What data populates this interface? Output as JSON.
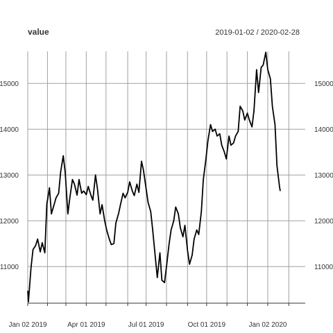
{
  "chart_data": {
    "type": "line",
    "title": "value",
    "subtitle": "2019-01-02 / 2020-02-28",
    "xlabel": "",
    "ylabel": "",
    "ylim": [
      10200,
      15700
    ],
    "y_ticks": [
      11000,
      12000,
      13000,
      14000,
      15000
    ],
    "y_tick_labels": [
      "11000",
      "12000",
      "13000",
      "14000",
      "15000"
    ],
    "x_range": [
      "2019-01-02",
      "2020-02-28"
    ],
    "x_ticks": [
      "2019-01-02",
      "2019-02-01",
      "2019-03-01",
      "2019-04-01",
      "2019-05-01",
      "2019-06-03",
      "2019-07-01",
      "2019-08-01",
      "2019-09-02",
      "2019-10-01",
      "2019-11-01",
      "2019-12-02",
      "2020-01-02",
      "2020-02-03"
    ],
    "x_tick_labels": [
      {
        "date": "2019-01-02",
        "label": "Jan 02 2019"
      },
      {
        "date": "2019-04-01",
        "label": "Apr 01 2019"
      },
      {
        "date": "2019-07-01",
        "label": "Jul 01 2019"
      },
      {
        "date": "2019-10-01",
        "label": "Oct 01 2019"
      },
      {
        "date": "2020-01-02",
        "label": "Jan 02 2020"
      }
    ],
    "grid": true,
    "series": [
      {
        "name": "value",
        "color": "#000000",
        "points": [
          [
            "2019-01-02",
            10470
          ],
          [
            "2019-01-03",
            10230
          ],
          [
            "2019-01-07",
            10980
          ],
          [
            "2019-01-10",
            11370
          ],
          [
            "2019-01-14",
            11460
          ],
          [
            "2019-01-17",
            11600
          ],
          [
            "2019-01-21",
            11320
          ],
          [
            "2019-01-24",
            11520
          ],
          [
            "2019-01-28",
            11300
          ],
          [
            "2019-01-31",
            12360
          ],
          [
            "2019-02-04",
            12720
          ],
          [
            "2019-02-07",
            12150
          ],
          [
            "2019-02-11",
            12350
          ],
          [
            "2019-02-14",
            12500
          ],
          [
            "2019-02-18",
            12600
          ],
          [
            "2019-02-21",
            13060
          ],
          [
            "2019-02-25",
            13420
          ],
          [
            "2019-02-28",
            13050
          ],
          [
            "2019-03-04",
            12150
          ],
          [
            "2019-03-07",
            12500
          ],
          [
            "2019-03-11",
            12900
          ],
          [
            "2019-03-14",
            12800
          ],
          [
            "2019-03-18",
            12560
          ],
          [
            "2019-03-21",
            12900
          ],
          [
            "2019-03-25",
            12600
          ],
          [
            "2019-03-28",
            12650
          ],
          [
            "2019-04-01",
            12570
          ],
          [
            "2019-04-04",
            12750
          ],
          [
            "2019-04-08",
            12560
          ],
          [
            "2019-04-11",
            12450
          ],
          [
            "2019-04-15",
            13000
          ],
          [
            "2019-04-18",
            12700
          ],
          [
            "2019-04-22",
            12150
          ],
          [
            "2019-04-25",
            12350
          ],
          [
            "2019-04-29",
            12000
          ],
          [
            "2019-05-02",
            11800
          ],
          [
            "2019-05-06",
            11600
          ],
          [
            "2019-05-09",
            11480
          ],
          [
            "2019-05-13",
            11500
          ],
          [
            "2019-05-16",
            11950
          ],
          [
            "2019-05-20",
            12150
          ],
          [
            "2019-05-23",
            12350
          ],
          [
            "2019-05-27",
            12600
          ],
          [
            "2019-05-30",
            12500
          ],
          [
            "2019-06-03",
            12620
          ],
          [
            "2019-06-06",
            12850
          ],
          [
            "2019-06-10",
            12650
          ],
          [
            "2019-06-13",
            12550
          ],
          [
            "2019-06-17",
            12800
          ],
          [
            "2019-06-20",
            12620
          ],
          [
            "2019-06-24",
            13300
          ],
          [
            "2019-06-27",
            13100
          ],
          [
            "2019-07-01",
            12700
          ],
          [
            "2019-07-04",
            12400
          ],
          [
            "2019-07-08",
            12200
          ],
          [
            "2019-07-11",
            11800
          ],
          [
            "2019-07-15",
            11200
          ],
          [
            "2019-07-18",
            10760
          ],
          [
            "2019-07-22",
            11300
          ],
          [
            "2019-07-25",
            10700
          ],
          [
            "2019-07-29",
            10650
          ],
          [
            "2019-08-01",
            11000
          ],
          [
            "2019-08-05",
            11500
          ],
          [
            "2019-08-08",
            11800
          ],
          [
            "2019-08-12",
            12000
          ],
          [
            "2019-08-15",
            12300
          ],
          [
            "2019-08-19",
            12150
          ],
          [
            "2019-08-22",
            11850
          ],
          [
            "2019-08-26",
            11650
          ],
          [
            "2019-08-29",
            11900
          ],
          [
            "2019-09-02",
            11350
          ],
          [
            "2019-09-05",
            11050
          ],
          [
            "2019-09-09",
            11250
          ],
          [
            "2019-09-12",
            11600
          ],
          [
            "2019-09-16",
            11800
          ],
          [
            "2019-09-19",
            11700
          ],
          [
            "2019-09-23",
            12200
          ],
          [
            "2019-09-26",
            12900
          ],
          [
            "2019-09-30",
            13350
          ],
          [
            "2019-10-03",
            13750
          ],
          [
            "2019-10-07",
            14100
          ],
          [
            "2019-10-10",
            13950
          ],
          [
            "2019-10-14",
            14000
          ],
          [
            "2019-10-17",
            13850
          ],
          [
            "2019-10-21",
            13900
          ],
          [
            "2019-10-24",
            13650
          ],
          [
            "2019-10-28",
            13500
          ],
          [
            "2019-10-31",
            13350
          ],
          [
            "2019-11-04",
            13850
          ],
          [
            "2019-11-07",
            13650
          ],
          [
            "2019-11-11",
            13700
          ],
          [
            "2019-11-14",
            13850
          ],
          [
            "2019-11-18",
            13950
          ],
          [
            "2019-11-21",
            14500
          ],
          [
            "2019-11-25",
            14400
          ],
          [
            "2019-11-28",
            14200
          ],
          [
            "2019-12-02",
            14350
          ],
          [
            "2019-12-05",
            14200
          ],
          [
            "2019-12-09",
            14050
          ],
          [
            "2019-12-12",
            14400
          ],
          [
            "2019-12-16",
            15300
          ],
          [
            "2019-12-19",
            14800
          ],
          [
            "2019-12-23",
            15350
          ],
          [
            "2019-12-26",
            15400
          ],
          [
            "2019-12-30",
            15680
          ],
          [
            "2020-01-02",
            15300
          ],
          [
            "2020-01-06",
            15100
          ],
          [
            "2020-01-09",
            14500
          ],
          [
            "2020-01-13",
            14100
          ],
          [
            "2020-01-16",
            13200
          ],
          [
            "2020-01-20",
            12730
          ],
          [
            "2020-01-21",
            12650
          ]
        ]
      }
    ]
  }
}
